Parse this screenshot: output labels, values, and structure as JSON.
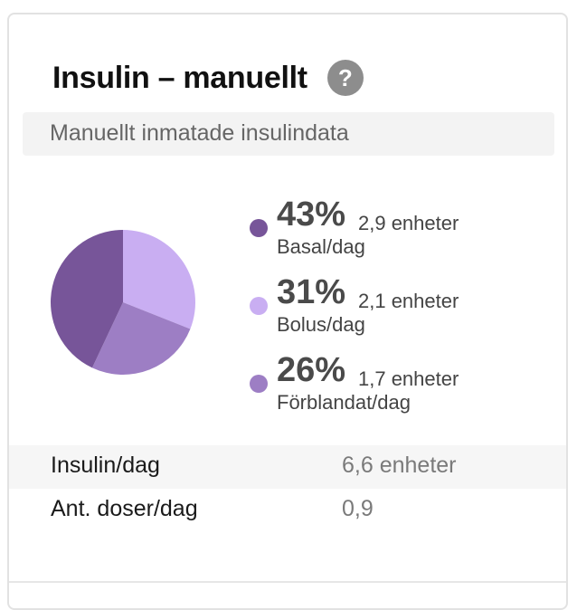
{
  "card": {
    "title": "Insulin – manuellt",
    "help_icon_glyph": "?",
    "help_icon": "question-mark-icon",
    "subtitle": "Manuellt inmatade insulindata"
  },
  "chart_data": {
    "type": "pie",
    "slices": [
      {
        "percent_label": "43%",
        "value": 43,
        "units": "2,9 enheter",
        "name": "Basal/dag",
        "color": "#775599"
      },
      {
        "percent_label": "31%",
        "value": 31,
        "units": "2,1 enheter",
        "name": "Bolus/dag",
        "color": "#c9aef2"
      },
      {
        "percent_label": "26%",
        "value": 26,
        "units": "1,7 enheter",
        "name": "Förblandat/dag",
        "color": "#9d7ec4"
      }
    ],
    "start_angle_deg": 0,
    "direction": "clockwise"
  },
  "stats": [
    {
      "label": "Insulin/dag",
      "value": "6,6 enheter",
      "shaded": true
    },
    {
      "label": "Ant. doser/dag",
      "value": "0,9",
      "shaded": false
    }
  ]
}
